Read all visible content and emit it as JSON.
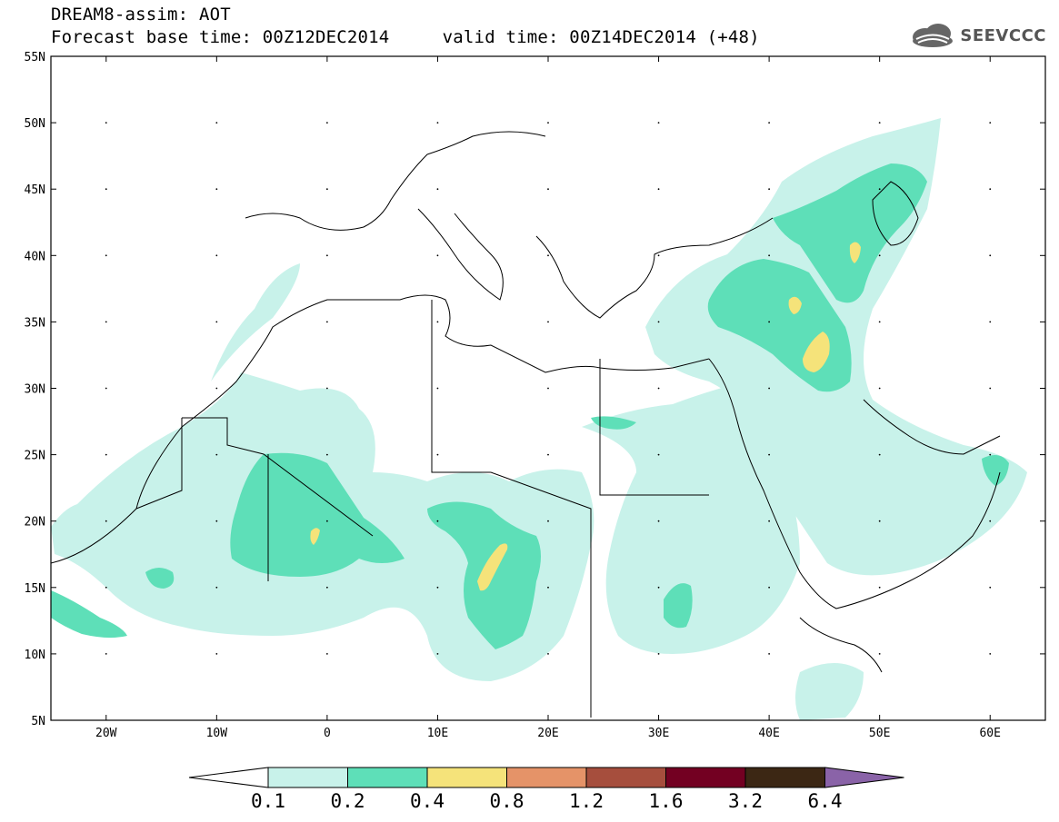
{
  "header": {
    "line1": "DREAM8-assim: AOT",
    "line2": "Forecast base time: 00Z12DEC2014     valid time: 00Z14DEC2014 (+48)"
  },
  "logo": {
    "text": "SEEVCCC",
    "icon": "cloud-logo-icon"
  },
  "map": {
    "lat_labels": [
      "55N",
      "50N",
      "45N",
      "40N",
      "35N",
      "30N",
      "25N",
      "20N",
      "15N",
      "10N",
      "5N"
    ],
    "lon_labels": [
      "20W",
      "10W",
      "0",
      "10E",
      "20E",
      "30E",
      "40E",
      "50E",
      "60E"
    ],
    "extent": {
      "lon": [
        -25,
        65
      ],
      "lat": [
        5,
        55
      ]
    }
  },
  "colorbar": {
    "labels": [
      "0.1",
      "0.2",
      "0.4",
      "0.8",
      "1.2",
      "1.6",
      "3.2",
      "6.4"
    ],
    "colors": [
      "#ffffff",
      "#c8f2ea",
      "#5edfb8",
      "#f5e37a",
      "#e59368",
      "#a64e3d",
      "#730022",
      "#3c2714",
      "#8a63a8"
    ]
  },
  "legend_colors": {
    "c1": "#c8f2ea",
    "c2": "#5edfb8",
    "c3": "#f5e37a"
  }
}
